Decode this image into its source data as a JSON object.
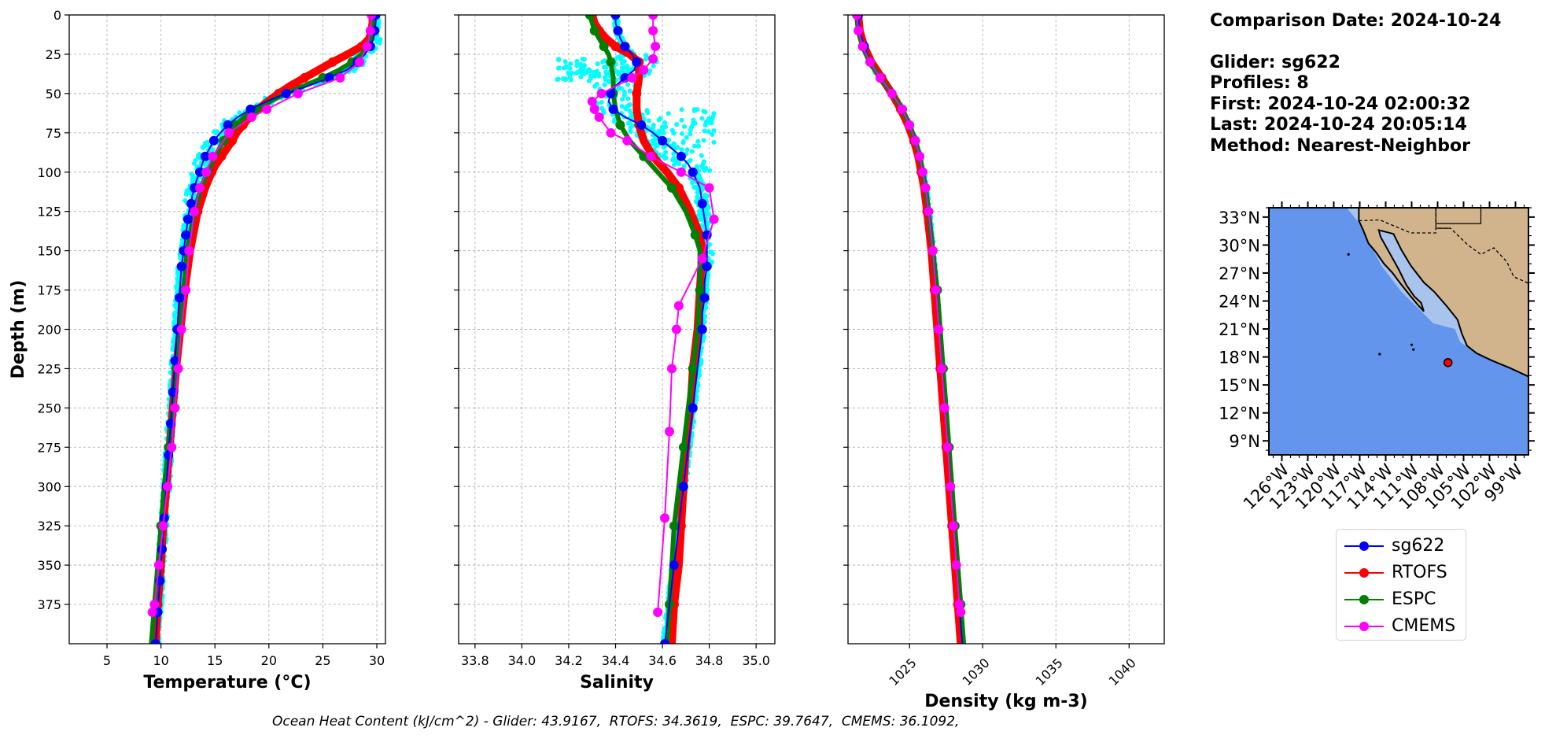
{
  "info": {
    "comparison_date": "Comparison Date: 2024-10-24",
    "glider": "Glider: sg622",
    "profiles": "Profiles: 8",
    "first": "First: 2024-10-24 02:00:32",
    "last": "Last: 2024-10-24 20:05:14",
    "method": "Method: Nearest-Neighbor"
  },
  "footer": "Ocean Heat Content (kJ/cm^2) - Glider: 43.9167,  RTOFS: 34.3619,  ESPC: 39.7647,  CMEMS: 36.1092,",
  "colors": {
    "sg622": "#0000ff",
    "RTOFS": "#ff0000",
    "ESPC": "#008000",
    "CMEMS": "#ff00ff",
    "glider_raw": "#00ffff",
    "ocean": "#6495ed",
    "land": "#d2b48c",
    "shelf": "#a8c4ec"
  },
  "legend": [
    {
      "name": "sg622",
      "color": "#0000ff"
    },
    {
      "name": "RTOFS",
      "color": "#ff0000"
    },
    {
      "name": "ESPC",
      "color": "#008000"
    },
    {
      "name": "CMEMS",
      "color": "#ff00ff"
    }
  ],
  "chart_data": [
    {
      "type": "line",
      "xlabel": "Temperature (°C)",
      "ylabel": "Depth (m)",
      "xlim": [
        1.5,
        30.8
      ],
      "ylim": [
        400,
        0
      ],
      "xticks": [
        "5",
        "10",
        "15",
        "20",
        "25",
        "30"
      ],
      "yticks": [
        "0",
        "25",
        "50",
        "75",
        "100",
        "125",
        "150",
        "175",
        "200",
        "225",
        "250",
        "275",
        "300",
        "325",
        "350",
        "375"
      ],
      "grid": true,
      "series": [
        {
          "name": "sg622",
          "depth": [
            0,
            5,
            10,
            15,
            20,
            25,
            30,
            35,
            40,
            45,
            50,
            55,
            60,
            65,
            70,
            75,
            80,
            85,
            90,
            95,
            100,
            105,
            110,
            115,
            120,
            125,
            130,
            135,
            140,
            145,
            150,
            155,
            160,
            170,
            180,
            190,
            200,
            210,
            220,
            230,
            240,
            250,
            260,
            270,
            280,
            290,
            300,
            310,
            320,
            330,
            340,
            350,
            360,
            370,
            380,
            390,
            400
          ],
          "values": [
            29.9,
            29.9,
            29.8,
            29.7,
            29.4,
            28.9,
            28.2,
            27.2,
            25.6,
            23.7,
            21.6,
            19.8,
            18.3,
            17.1,
            16.2,
            15.5,
            14.9,
            14.5,
            14.1,
            13.8,
            13.6,
            13.3,
            13.1,
            12.9,
            12.8,
            12.6,
            12.5,
            12.4,
            12.3,
            12.2,
            12.1,
            12.0,
            11.9,
            11.8,
            11.7,
            11.6,
            11.5,
            11.4,
            11.3,
            11.2,
            11.1,
            11.0,
            10.9,
            10.8,
            10.7,
            10.6,
            10.5,
            10.4,
            10.3,
            10.2,
            10.1,
            10.0,
            9.9,
            9.8,
            9.7,
            9.6,
            9.5
          ]
        },
        {
          "name": "RTOFS",
          "depth": [
            0,
            5,
            10,
            15,
            20,
            25,
            30,
            35,
            40,
            45,
            50,
            55,
            60,
            65,
            70,
            75,
            80,
            85,
            90,
            95,
            100,
            110,
            125,
            150,
            175,
            200,
            225,
            250,
            275,
            300,
            325,
            350,
            375,
            400
          ],
          "values": [
            29.6,
            29.6,
            29.5,
            29.3,
            28.6,
            27.3,
            25.9,
            24.6,
            23.3,
            22.0,
            20.9,
            19.9,
            19.0,
            18.2,
            17.6,
            17.0,
            16.6,
            16.1,
            15.6,
            15.1,
            14.7,
            14.1,
            13.4,
            12.7,
            12.2,
            11.8,
            11.4,
            11.1,
            10.8,
            10.5,
            10.2,
            10.0,
            9.7,
            9.5
          ]
        },
        {
          "name": "ESPC",
          "depth": [
            0,
            5,
            10,
            15,
            20,
            25,
            30,
            35,
            40,
            45,
            50,
            55,
            60,
            65,
            70,
            75,
            80,
            90,
            100,
            110,
            125,
            150,
            175,
            200,
            225,
            250,
            275,
            300,
            325,
            350,
            375,
            400
          ],
          "values": [
            29.6,
            29.6,
            29.5,
            29.4,
            29.1,
            28.6,
            27.7,
            26.5,
            25.0,
            23.3,
            21.6,
            20.1,
            18.8,
            17.7,
            16.9,
            16.3,
            15.8,
            15.0,
            14.3,
            13.7,
            13.1,
            12.4,
            12.1,
            11.8,
            11.4,
            11.1,
            10.7,
            10.3,
            10.0,
            9.7,
            9.4,
            9.1
          ]
        },
        {
          "name": "CMEMS",
          "depth": [
            0,
            10,
            20,
            30,
            40,
            50,
            60,
            65,
            75,
            90,
            100,
            110,
            125,
            150,
            175,
            200,
            225,
            250,
            275,
            300,
            325,
            350,
            375,
            380
          ],
          "values": [
            29.5,
            29.4,
            29.1,
            28.4,
            26.6,
            22.7,
            19.8,
            18.4,
            16.3,
            14.8,
            14.2,
            13.6,
            13.1,
            12.6,
            12.3,
            11.9,
            11.6,
            11.3,
            11.0,
            10.6,
            10.2,
            9.8,
            9.4,
            9.2
          ]
        }
      ]
    },
    {
      "type": "line",
      "xlabel": "Salinity",
      "xlim": [
        33.73,
        35.08
      ],
      "ylim": [
        400,
        0
      ],
      "xticks": [
        "33.8",
        "34.0",
        "34.2",
        "34.4",
        "34.6",
        "34.8",
        "35.0"
      ],
      "grid": true,
      "series": [
        {
          "name": "sg622",
          "depth": [
            0,
            5,
            10,
            15,
            20,
            25,
            30,
            35,
            40,
            45,
            50,
            55,
            60,
            65,
            70,
            75,
            80,
            85,
            90,
            95,
            100,
            110,
            120,
            130,
            140,
            150,
            160,
            170,
            180,
            190,
            200,
            225,
            250,
            275,
            300,
            325,
            350,
            375,
            400
          ],
          "values": [
            34.4,
            34.4,
            34.41,
            34.42,
            34.44,
            34.47,
            34.49,
            34.48,
            34.44,
            34.4,
            34.38,
            34.37,
            34.39,
            34.44,
            34.51,
            34.56,
            34.6,
            34.64,
            34.68,
            34.71,
            34.73,
            34.76,
            34.77,
            34.78,
            34.79,
            34.79,
            34.79,
            34.78,
            34.78,
            34.77,
            34.77,
            34.75,
            34.73,
            34.71,
            34.69,
            34.67,
            34.65,
            34.63,
            34.61
          ]
        },
        {
          "name": "RTOFS",
          "depth": [
            0,
            5,
            10,
            15,
            20,
            25,
            30,
            40,
            50,
            60,
            70,
            80,
            90,
            100,
            110,
            125,
            140,
            150,
            175,
            200,
            225,
            250,
            275,
            300,
            325,
            350,
            375,
            400
          ],
          "values": [
            34.3,
            34.31,
            34.33,
            34.36,
            34.4,
            34.46,
            34.5,
            34.5,
            34.49,
            34.49,
            34.5,
            34.52,
            34.56,
            34.62,
            34.67,
            34.72,
            34.76,
            34.77,
            34.76,
            34.75,
            34.73,
            34.72,
            34.7,
            34.69,
            34.68,
            34.67,
            34.65,
            34.64
          ]
        },
        {
          "name": "ESPC",
          "depth": [
            0,
            5,
            10,
            15,
            20,
            25,
            30,
            40,
            50,
            60,
            70,
            80,
            90,
            100,
            110,
            125,
            140,
            150,
            175,
            200,
            225,
            250,
            275,
            300,
            325,
            350,
            375,
            400
          ],
          "values": [
            34.29,
            34.3,
            34.31,
            34.33,
            34.35,
            34.37,
            34.38,
            34.39,
            34.39,
            34.4,
            34.42,
            34.46,
            34.52,
            34.58,
            34.64,
            34.7,
            34.74,
            34.76,
            34.76,
            34.75,
            34.73,
            34.71,
            34.69,
            34.67,
            34.65,
            34.64,
            34.63,
            34.62
          ]
        },
        {
          "name": "CMEMS",
          "depth": [
            0,
            10,
            20,
            28,
            35,
            40,
            50,
            55,
            60,
            65,
            75,
            80,
            90,
            100,
            110,
            130,
            155,
            185,
            200,
            225,
            265,
            320,
            380
          ],
          "values": [
            34.56,
            34.56,
            34.57,
            34.56,
            34.52,
            34.47,
            34.34,
            34.3,
            34.31,
            34.33,
            34.38,
            34.45,
            34.55,
            34.68,
            34.8,
            34.82,
            34.77,
            34.67,
            34.66,
            34.64,
            34.63,
            34.61,
            34.58
          ]
        }
      ]
    },
    {
      "type": "line",
      "xlabel": "Density (kg m-3)",
      "xlim": [
        1020.8,
        1042.4
      ],
      "ylim": [
        400,
        0
      ],
      "xticks": [
        "1025",
        "1030",
        "1035",
        "1040"
      ],
      "grid": true,
      "series": [
        {
          "name": "sg622",
          "depth": [
            0,
            10,
            20,
            30,
            40,
            50,
            60,
            70,
            80,
            90,
            100,
            110,
            125,
            150,
            175,
            200,
            225,
            250,
            275,
            300,
            325,
            350,
            375,
            400
          ],
          "values": [
            1021.5,
            1021.6,
            1021.9,
            1022.3,
            1023.0,
            1023.8,
            1024.5,
            1025.0,
            1025.4,
            1025.7,
            1025.9,
            1026.1,
            1026.3,
            1026.6,
            1026.8,
            1027.0,
            1027.2,
            1027.4,
            1027.6,
            1027.8,
            1028.0,
            1028.2,
            1028.4,
            1028.6
          ]
        },
        {
          "name": "RTOFS",
          "depth": [
            0,
            10,
            20,
            30,
            40,
            50,
            60,
            70,
            80,
            90,
            100,
            110,
            125,
            150,
            175,
            200,
            225,
            250,
            275,
            300,
            325,
            350,
            375,
            400
          ],
          "values": [
            1021.5,
            1021.6,
            1021.9,
            1022.4,
            1023.1,
            1023.8,
            1024.4,
            1024.9,
            1025.3,
            1025.6,
            1025.8,
            1026.0,
            1026.2,
            1026.5,
            1026.7,
            1026.9,
            1027.1,
            1027.3,
            1027.5,
            1027.7,
            1027.9,
            1028.1,
            1028.3,
            1028.5
          ]
        },
        {
          "name": "ESPC",
          "depth": [
            0,
            10,
            20,
            30,
            40,
            50,
            60,
            70,
            80,
            90,
            100,
            110,
            125,
            150,
            175,
            200,
            225,
            250,
            275,
            300,
            325,
            350,
            375,
            400
          ],
          "values": [
            1021.4,
            1021.5,
            1021.8,
            1022.3,
            1023.0,
            1023.8,
            1024.5,
            1025.0,
            1025.4,
            1025.7,
            1025.9,
            1026.1,
            1026.3,
            1026.6,
            1026.9,
            1027.1,
            1027.3,
            1027.5,
            1027.7,
            1027.9,
            1028.1,
            1028.3,
            1028.5,
            1028.7
          ]
        },
        {
          "name": "CMEMS",
          "depth": [
            0,
            10,
            20,
            30,
            40,
            50,
            60,
            70,
            80,
            90,
            100,
            110,
            125,
            150,
            175,
            200,
            225,
            250,
            275,
            300,
            325,
            350,
            375,
            380
          ],
          "values": [
            1021.4,
            1021.5,
            1021.8,
            1022.3,
            1023.0,
            1023.8,
            1024.5,
            1025.0,
            1025.4,
            1025.7,
            1025.9,
            1026.1,
            1026.3,
            1026.6,
            1026.8,
            1027.0,
            1027.2,
            1027.4,
            1027.6,
            1027.8,
            1028.0,
            1028.2,
            1028.4,
            1028.5
          ]
        }
      ]
    },
    {
      "type": "map",
      "lat_ticks": [
        "33°N",
        "30°N",
        "27°N",
        "24°N",
        "21°N",
        "18°N",
        "15°N",
        "12°N",
        "9°N"
      ],
      "lon_ticks": [
        "126°W",
        "123°W",
        "120°W",
        "117°W",
        "114°W",
        "111°W",
        "108°W",
        "105°W",
        "102°W",
        "99°W"
      ],
      "lat_range": [
        7.5,
        34
      ],
      "lon_range": [
        -127.5,
        -97.5
      ],
      "glider_location": {
        "lat": 17.4,
        "lon": -106.8
      }
    }
  ]
}
